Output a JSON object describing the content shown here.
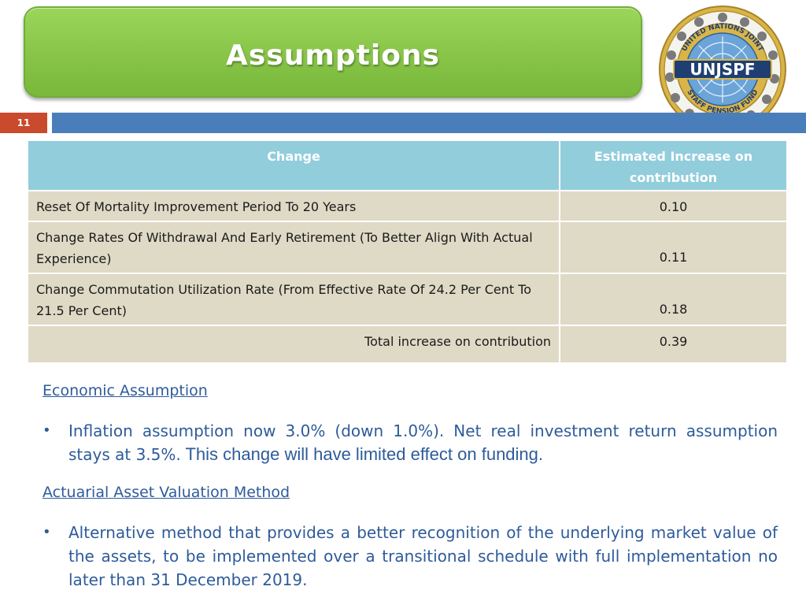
{
  "header": {
    "title": "Assumptions",
    "slide_number": "11",
    "logo_text": "UNJSPF",
    "logo_ring_text": "UNITED NATIONS JOINT STAFF PENSION FUND"
  },
  "table": {
    "headers": [
      "Change",
      "Estimated Increase on contribution"
    ],
    "rows": [
      {
        "label": "Reset Of Mortality Improvement Period To 20 Years",
        "value": "0.10"
      },
      {
        "label": "Change Rates Of Withdrawal And Early Retirement (To Better Align With Actual Experience)",
        "value": "0.11"
      },
      {
        "label": "Change Commutation Utilization Rate (From Effective Rate Of 24.2 Per Cent To 21.5 Per Cent)",
        "value": "0.18"
      }
    ],
    "total": {
      "label": "Total increase on contribution",
      "value": "0.39"
    }
  },
  "sections": [
    {
      "heading": "Economic Assumption",
      "bullet": "•",
      "text": "Inflation assumption now 3.0% (down 1.0%). Net real investment return assumption stays at 3.5%.",
      "text_extra": " This change will have limited effect on funding."
    },
    {
      "heading": "Actuarial Asset Valuation Method",
      "bullet": "•",
      "text": "Alternative method that provides a better recognition of the underlying market value of the assets, to be implemented over a transitional schedule with full implementation no later than 31 December 2019."
    }
  ],
  "colors": {
    "banner_green": "#87c448",
    "slide_number_red": "#c94a2c",
    "strip_blue": "#4a7ebb",
    "table_header": "#92cddc",
    "table_body": "#dfdac6",
    "body_text_blue": "#2e5b9a"
  }
}
